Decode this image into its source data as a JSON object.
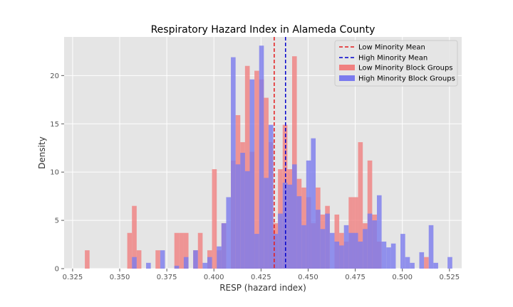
{
  "chart_data": {
    "type": "histogram",
    "title": "Respiratory Hazard Index in Alameda County",
    "xlabel": "RESP (hazard index)",
    "ylabel": "Density",
    "xlim": [
      0.3205,
      0.5315
    ],
    "ylim": [
      0,
      24
    ],
    "xticks": [
      "0.325",
      "0.350",
      "0.375",
      "0.400",
      "0.425",
      "0.450",
      "0.475",
      "0.500",
      "0.525"
    ],
    "xtick_values": [
      0.325,
      0.35,
      0.375,
      0.4,
      0.425,
      0.45,
      0.475,
      0.5,
      0.525
    ],
    "yticks": [
      "0",
      "5",
      "10",
      "15",
      "20"
    ],
    "ytick_values": [
      0,
      5,
      10,
      15,
      20
    ],
    "grid": true,
    "legend_position": "top-right",
    "vlines": [
      {
        "name": "Low Minority Mean",
        "x": 0.432,
        "color": "#e41a1c",
        "style": "dashed"
      },
      {
        "name": "High Minority Mean",
        "x": 0.438,
        "color": "#0000cc",
        "style": "dashed"
      }
    ],
    "series": [
      {
        "name": "Low Minority Block Groups",
        "color": "#f08080",
        "bin_width": 0.0025,
        "bins": [
          [
            0.3315,
            1.9
          ],
          [
            0.3565,
            6.5
          ],
          [
            0.354,
            3.7
          ],
          [
            0.359,
            1.9
          ],
          [
            0.369,
            1.9
          ],
          [
            0.379,
            3.7
          ],
          [
            0.3815,
            3.7
          ],
          [
            0.384,
            3.7
          ],
          [
            0.389,
            1.9
          ],
          [
            0.3915,
            3.7
          ],
          [
            0.3965,
            1.9
          ],
          [
            0.399,
            10.3
          ],
          [
            0.4015,
            1.9
          ],
          [
            0.404,
            4.7
          ],
          [
            0.409,
            11.2
          ],
          [
            0.4115,
            15.9
          ],
          [
            0.414,
            13.1
          ],
          [
            0.4165,
            21.0
          ],
          [
            0.419,
            12.1
          ],
          [
            0.4215,
            20.5
          ],
          [
            0.424,
            19.6
          ],
          [
            0.4265,
            17.7
          ],
          [
            0.429,
            13.1
          ],
          [
            0.4315,
            4.7
          ],
          [
            0.434,
            10.3
          ],
          [
            0.4365,
            14.9
          ],
          [
            0.439,
            10.3
          ],
          [
            0.4415,
            22.0
          ],
          [
            0.444,
            9.3
          ],
          [
            0.4465,
            8.4
          ],
          [
            0.449,
            7.4
          ],
          [
            0.4515,
            4.7
          ],
          [
            0.454,
            8.4
          ],
          [
            0.4565,
            5.6
          ],
          [
            0.459,
            6.5
          ],
          [
            0.464,
            5.6
          ],
          [
            0.4665,
            3.7
          ],
          [
            0.469,
            2.8
          ],
          [
            0.4715,
            7.4
          ],
          [
            0.474,
            7.4
          ],
          [
            0.4765,
            13.1
          ],
          [
            0.479,
            4.7
          ],
          [
            0.4815,
            11.2
          ],
          [
            0.484,
            5.6
          ],
          [
            0.4865,
            2.8
          ],
          [
            0.5115,
            1.2
          ]
        ]
      },
      {
        "name": "High Minority Block Groups",
        "color": "#7b7bee",
        "bin_width": 0.0025,
        "bins": [
          [
            0.3565,
            1.2
          ],
          [
            0.364,
            0.6
          ],
          [
            0.3715,
            1.9
          ],
          [
            0.379,
            0.3
          ],
          [
            0.384,
            1.2
          ],
          [
            0.389,
            1.9
          ],
          [
            0.394,
            0.6
          ],
          [
            0.3965,
            1.2
          ],
          [
            0.4015,
            2.3
          ],
          [
            0.404,
            4.7
          ],
          [
            0.4065,
            7.4
          ],
          [
            0.409,
            21.9
          ],
          [
            0.4115,
            10.8
          ],
          [
            0.414,
            12.0
          ],
          [
            0.4165,
            10.1
          ],
          [
            0.419,
            19.6
          ],
          [
            0.4215,
            3.6
          ],
          [
            0.424,
            23.1
          ],
          [
            0.4265,
            9.4
          ],
          [
            0.429,
            14.9
          ],
          [
            0.4315,
            3.6
          ],
          [
            0.434,
            5.7
          ],
          [
            0.4365,
            8.9
          ],
          [
            0.439,
            8.7
          ],
          [
            0.4415,
            10.8
          ],
          [
            0.444,
            7.5
          ],
          [
            0.4465,
            4.5
          ],
          [
            0.449,
            11.2
          ],
          [
            0.4515,
            13.5
          ],
          [
            0.454,
            6.1
          ],
          [
            0.4565,
            4.1
          ],
          [
            0.459,
            5.7
          ],
          [
            0.4615,
            3.7
          ],
          [
            0.464,
            2.8
          ],
          [
            0.4665,
            2.4
          ],
          [
            0.469,
            4.5
          ],
          [
            0.4715,
            3.7
          ],
          [
            0.474,
            3.7
          ],
          [
            0.4765,
            2.8
          ],
          [
            0.479,
            4.1
          ],
          [
            0.4815,
            5.7
          ],
          [
            0.484,
            5.0
          ],
          [
            0.4865,
            7.6
          ],
          [
            0.489,
            2.8
          ],
          [
            0.4915,
            2.2
          ],
          [
            0.494,
            2.6
          ],
          [
            0.499,
            3.6
          ],
          [
            0.5015,
            1.2
          ],
          [
            0.504,
            0.6
          ],
          [
            0.509,
            1.7
          ],
          [
            0.514,
            4.5
          ],
          [
            0.5165,
            0.6
          ],
          [
            0.524,
            1.2
          ]
        ]
      }
    ]
  }
}
